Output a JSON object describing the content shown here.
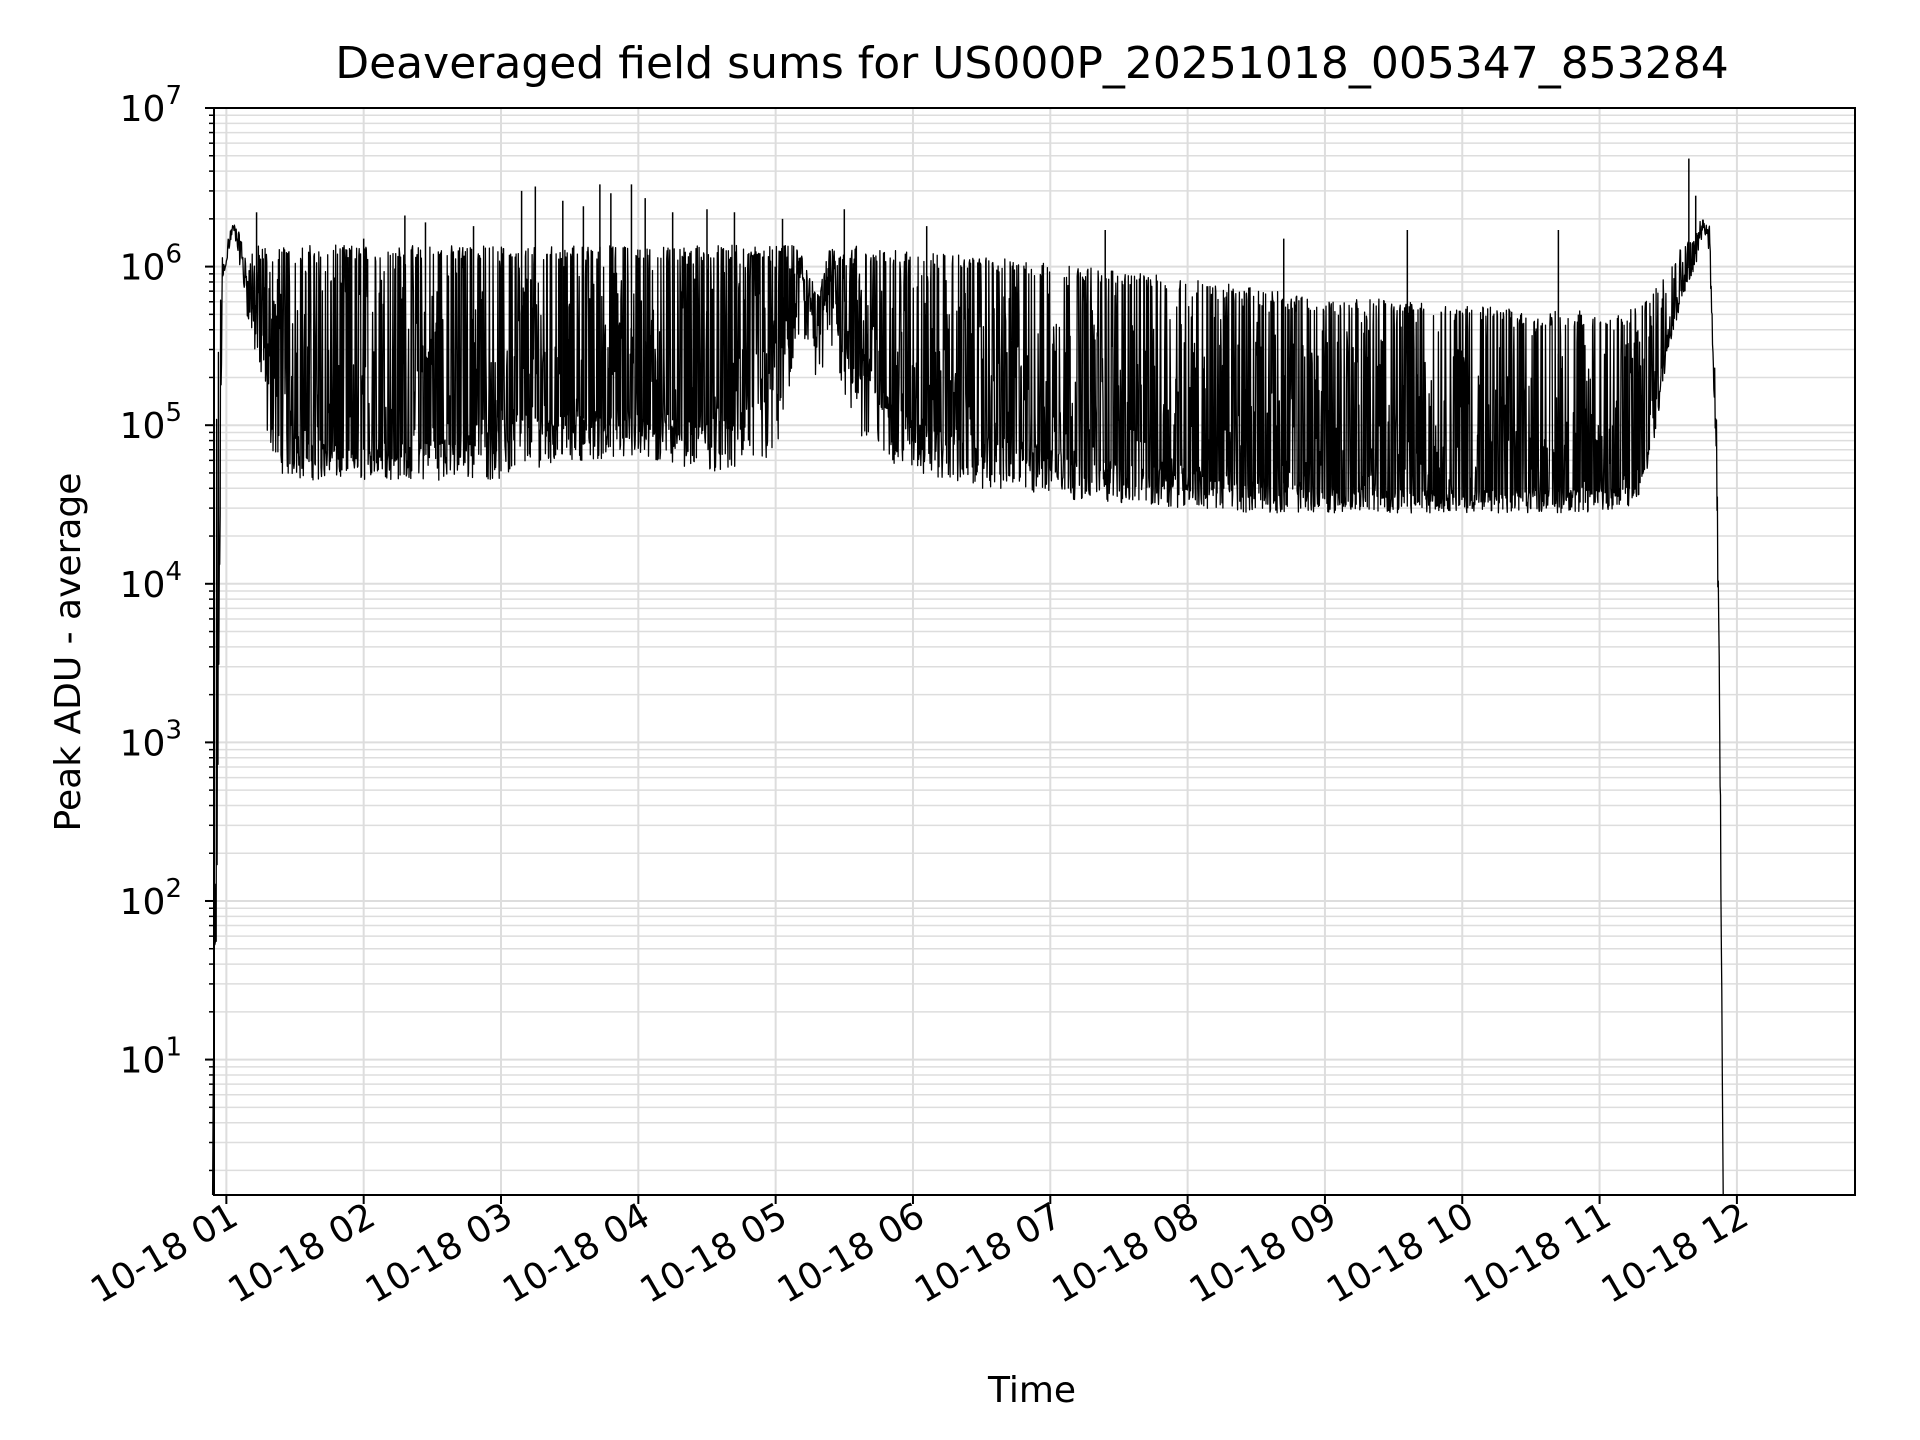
{
  "chart_data": {
    "type": "line",
    "title": "Deaveraged field sums for US000P_20251018_005347_853284",
    "xlabel": "Time",
    "ylabel": "Peak ADU - average",
    "y_scale": "log",
    "ylim": [
      1.4,
      10000000
    ],
    "xlim_hours": [
      0.91,
      12.86
    ],
    "grid": true,
    "x_ticks": [
      {
        "hour": 1,
        "label": "10-18 01"
      },
      {
        "hour": 2,
        "label": "10-18 02"
      },
      {
        "hour": 3,
        "label": "10-18 03"
      },
      {
        "hour": 4,
        "label": "10-18 04"
      },
      {
        "hour": 5,
        "label": "10-18 05"
      },
      {
        "hour": 6,
        "label": "10-18 06"
      },
      {
        "hour": 7,
        "label": "10-18 07"
      },
      {
        "hour": 8,
        "label": "10-18 08"
      },
      {
        "hour": 9,
        "label": "10-18 09"
      },
      {
        "hour": 10,
        "label": "10-18 10"
      },
      {
        "hour": 11,
        "label": "10-18 11"
      },
      {
        "hour": 12,
        "label": "10-18 12"
      }
    ],
    "y_ticks": [
      {
        "exp": 1,
        "base": "10",
        "sup": "1"
      },
      {
        "exp": 2,
        "base": "10",
        "sup": "2"
      },
      {
        "exp": 3,
        "base": "10",
        "sup": "3"
      },
      {
        "exp": 4,
        "base": "10",
        "sup": "4"
      },
      {
        "exp": 5,
        "base": "10",
        "sup": "5"
      },
      {
        "exp": 6,
        "base": "10",
        "sup": "6"
      },
      {
        "exp": 7,
        "base": "10",
        "sup": "7"
      }
    ],
    "series": [
      {
        "name": "Deaveraged field sum",
        "color": "#000000",
        "envelope": {
          "hours": [
            0.9,
            0.93,
            0.97,
            1.05,
            1.1,
            1.15,
            1.2,
            1.25,
            1.3,
            1.4,
            1.5,
            1.6,
            1.7,
            1.8,
            1.9,
            2.0,
            2.2,
            2.4,
            2.6,
            2.8,
            3.0,
            3.2,
            3.4,
            3.6,
            3.8,
            4.0,
            4.2,
            4.4,
            4.6,
            4.8,
            5.0,
            5.1,
            5.2,
            5.25,
            5.3,
            5.35,
            5.4,
            5.5,
            5.6,
            5.8,
            6.0,
            6.5,
            7.0,
            7.5,
            8.0,
            8.5,
            9.0,
            9.5,
            10.0,
            10.5,
            11.0,
            11.2,
            11.3,
            11.4,
            11.5,
            11.6,
            11.7,
            11.75,
            11.8,
            11.85,
            11.88,
            11.9
          ],
          "base": [
            0,
            100,
            800000,
            1800000,
            1300000,
            700000,
            600000,
            400000,
            200000,
            120000,
            100000,
            80000,
            70000,
            70000,
            70000,
            70000,
            70000,
            75000,
            80000,
            100000,
            100000,
            110000,
            110000,
            110000,
            110000,
            110000,
            110000,
            100000,
            100000,
            120000,
            200000,
            500000,
            800000,
            600000,
            300000,
            500000,
            800000,
            600000,
            300000,
            150000,
            100000,
            80000,
            70000,
            55000,
            50000,
            45000,
            40000,
            38000,
            38000,
            38000,
            38000,
            40000,
            45000,
            120000,
            400000,
            800000,
            1200000,
            1800000,
            1500000,
            80000,
            400,
            1.4
          ],
          "top": [
            0,
            150000,
            1200000,
            1900000,
            1600000,
            1000000,
            1300000,
            1300000,
            1300000,
            1300000,
            1300000,
            1300000,
            1300000,
            1300000,
            1300000,
            1300000,
            1300000,
            1300000,
            1300000,
            1300000,
            1300000,
            1300000,
            1300000,
            1300000,
            1300000,
            1300000,
            1300000,
            1300000,
            1300000,
            1300000,
            1300000,
            1300000,
            1300000,
            900000,
            600000,
            1000000,
            1300000,
            1300000,
            1300000,
            1200000,
            1200000,
            1100000,
            1000000,
            900000,
            800000,
            700000,
            600000,
            600000,
            550000,
            500000,
            500000,
            500000,
            550000,
            700000,
            1000000,
            1300000,
            1600000,
            2000000,
            1800000,
            150000,
            800,
            1.4
          ],
          "low": [
            0,
            100,
            800000,
            1700000,
            1000000,
            500000,
            300000,
            150000,
            80000,
            50000,
            45000,
            45000,
            45000,
            45000,
            45000,
            45000,
            45000,
            45000,
            45000,
            45000,
            45000,
            50000,
            60000,
            60000,
            60000,
            60000,
            55000,
            55000,
            50000,
            50000,
            60000,
            150000,
            200000,
            300000,
            150000,
            200000,
            300000,
            150000,
            80000,
            60000,
            50000,
            40000,
            35000,
            32000,
            30000,
            28000,
            28000,
            28000,
            28000,
            28000,
            28000,
            30000,
            35000,
            80000,
            300000,
            600000,
            1000000,
            1500000,
            1200000,
            50000,
            300,
            1.4
          ]
        },
        "spikes": [
          {
            "hour": 1.22,
            "value": 2200000
          },
          {
            "hour": 2.0,
            "value": 1500000
          },
          {
            "hour": 2.3,
            "value": 2100000
          },
          {
            "hour": 2.45,
            "value": 1900000
          },
          {
            "hour": 2.8,
            "value": 1800000
          },
          {
            "hour": 3.15,
            "value": 3000000
          },
          {
            "hour": 3.25,
            "value": 3200000
          },
          {
            "hour": 3.45,
            "value": 2600000
          },
          {
            "hour": 3.6,
            "value": 2400000
          },
          {
            "hour": 3.72,
            "value": 3300000
          },
          {
            "hour": 3.8,
            "value": 2900000
          },
          {
            "hour": 3.95,
            "value": 3300000
          },
          {
            "hour": 4.05,
            "value": 2700000
          },
          {
            "hour": 4.25,
            "value": 2200000
          },
          {
            "hour": 4.5,
            "value": 2300000
          },
          {
            "hour": 4.7,
            "value": 2200000
          },
          {
            "hour": 5.05,
            "value": 2000000
          },
          {
            "hour": 5.5,
            "value": 2300000
          },
          {
            "hour": 6.1,
            "value": 1800000
          },
          {
            "hour": 7.4,
            "value": 1700000
          },
          {
            "hour": 8.7,
            "value": 1500000
          },
          {
            "hour": 9.6,
            "value": 1700000
          },
          {
            "hour": 10.7,
            "value": 1700000
          },
          {
            "hour": 11.65,
            "value": 4800000
          },
          {
            "hour": 11.7,
            "value": 2800000
          }
        ]
      }
    ]
  }
}
